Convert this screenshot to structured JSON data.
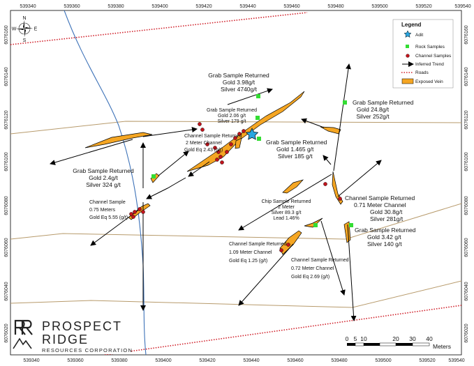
{
  "map": {
    "x_ticks": [
      "539340",
      "539360",
      "539380",
      "539400",
      "539420",
      "539440",
      "539460",
      "539480",
      "539500",
      "539520",
      "539540"
    ],
    "y_ticks": [
      "6076160",
      "6076140",
      "6076120",
      "6076100",
      "6076080",
      "6076060",
      "6076040",
      "6076020"
    ]
  },
  "legend": {
    "title": "Legend",
    "items": [
      "Adit",
      "Rock Samples",
      "Channel Samples",
      "Inferred Trend",
      "Roads",
      "Exposed Vein"
    ]
  },
  "labels": {
    "grab1": [
      "Grab Sample Returned",
      "Gold 3.98g/t",
      "Silver 4740g/t"
    ],
    "grab2": [
      "Grab Sample Returned",
      "Gold 2.06 g/t",
      "Silver 179 g/t"
    ],
    "grab3": [
      "Grab Sample Returned",
      "Gold 24.8g/t",
      "Silver 252g/t"
    ],
    "channel1": [
      "Channel Sample Returned",
      "2 Meter Channel",
      "Gold Eq 2.43 (g/t)"
    ],
    "grab4": [
      "Grab Sample Returned",
      "Gold 1.465 g/t",
      "Silver 185 g/t"
    ],
    "grab5": [
      "Grab Sample Returned",
      "Gold 2.4g/t",
      "Silver 324 g/t"
    ],
    "channel2": [
      "Channel Sample",
      "0.75 Meters",
      "Gold Eq 5.55 (g/t)"
    ],
    "chip": [
      "Chip Sample Returned",
      "2 Meter",
      "Silver 89.3 g/t",
      "Lead 1.46%"
    ],
    "channel3": [
      "Channel Sample Returned",
      "0.71 Meter Channel",
      "Gold 30.8g/t",
      "Silver 281g/t"
    ],
    "grab6": [
      "Grab Sample Returned",
      "Gold 3.42 g/t",
      "Silver 140 g/t"
    ],
    "channel4": [
      "Channel Sample Returned",
      "1.09 Meter Channel",
      "Gold Eq 1.25 (g/t)"
    ],
    "channel5": [
      "Channel Sample Returned",
      "0.72 Meter Channel",
      "Gold Eq 2.69 (g/t)"
    ]
  },
  "scale": {
    "ticks": [
      "0",
      "5",
      "10",
      "20",
      "30",
      "40"
    ],
    "unit": "Meters"
  },
  "compass": {
    "n": "N",
    "e": "E",
    "w": "W",
    "s": "S"
  },
  "logo": {
    "line1": "PROSPECT",
    "line2": "RIDGE",
    "line3": "RESOURCES CORPORATION"
  },
  "colors": {
    "vein": "#f5a623",
    "rock": "#33dd33",
    "channel": "#c0141c",
    "road": "#d0202a",
    "stream": "#3d72b8",
    "contour": "#b79a6b",
    "adit": "#2aa6e0"
  }
}
